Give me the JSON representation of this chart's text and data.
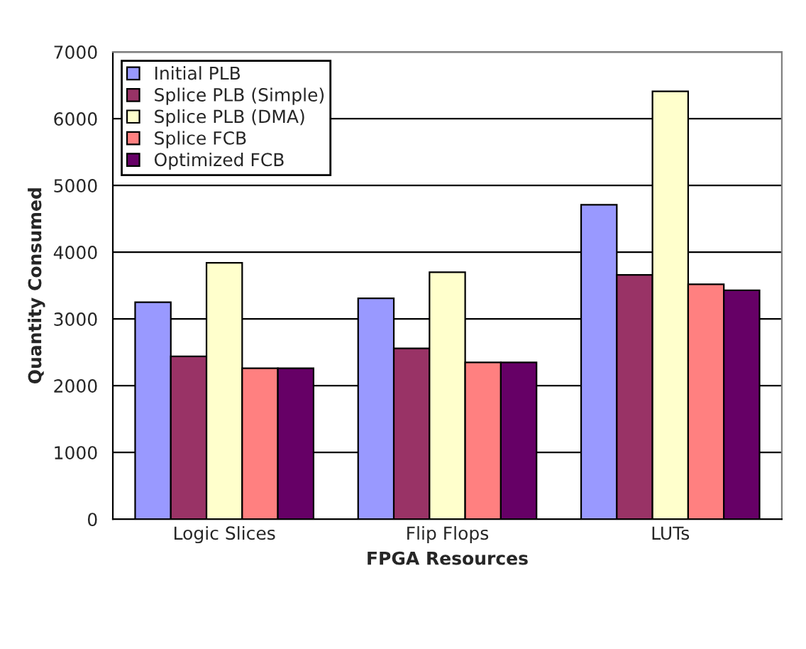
{
  "chart_data": {
    "type": "bar",
    "xlabel": "FPGA Resources",
    "ylabel": "Quantity Consumed",
    "categories": [
      "Logic Slices",
      "Flip Flops",
      "LUTs"
    ],
    "series": [
      {
        "name": "Initial PLB",
        "color": "#9999ff",
        "values": [
          3250,
          3310,
          4710
        ]
      },
      {
        "name": "Splice PLB (Simple)",
        "color": "#993366",
        "values": [
          2440,
          2560,
          3660
        ]
      },
      {
        "name": "Splice PLB (DMA)",
        "color": "#ffffcc",
        "values": [
          3840,
          3700,
          6410
        ]
      },
      {
        "name": "Splice FCB",
        "color": "#ff8080",
        "values": [
          2260,
          2350,
          3520
        ]
      },
      {
        "name": "Optimized FCB",
        "color": "#660066",
        "values": [
          2260,
          2350,
          3430
        ]
      }
    ],
    "ylim": [
      0,
      7000
    ],
    "yticks": [
      0,
      1000,
      2000,
      3000,
      4000,
      5000,
      6000,
      7000
    ],
    "grid": "y",
    "legend": "top left"
  }
}
